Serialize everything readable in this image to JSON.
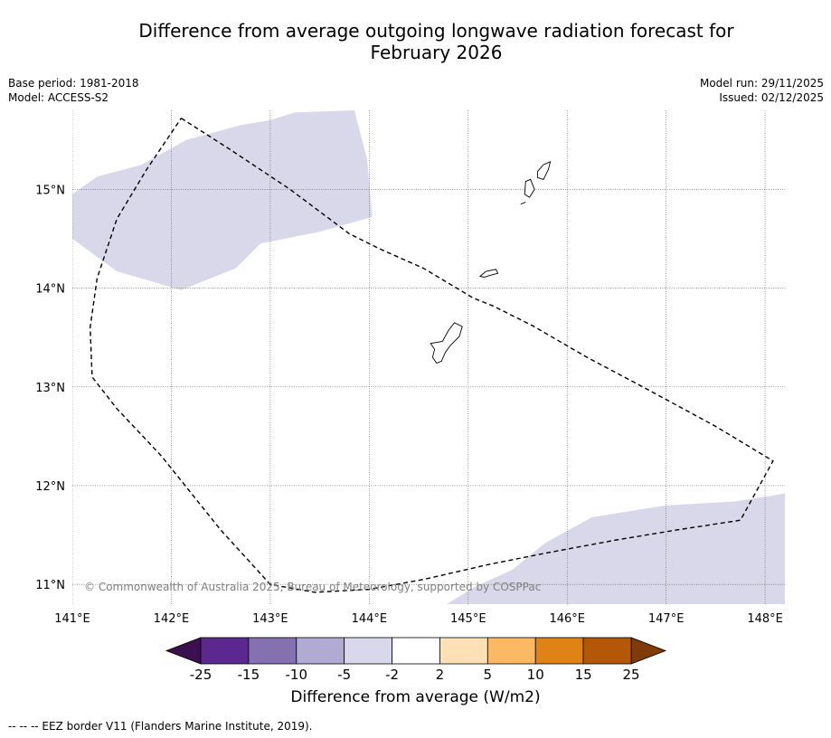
{
  "title_line1": "Difference from average outgoing longwave radiation forecast for",
  "title_line2": "February 2026",
  "meta": {
    "base_period": "Base period: 1981-2018",
    "model": "Model: ACCESS-S2",
    "model_run": "Model run: 29/11/2025",
    "issued": "Issued: 02/12/2025"
  },
  "map": {
    "lon_range": [
      141.0,
      148.2
    ],
    "lat_range": [
      10.8,
      15.8
    ],
    "lon_ticks": [
      141,
      142,
      143,
      144,
      145,
      146,
      147,
      148
    ],
    "lon_tick_labels": [
      "141°E",
      "142°E",
      "143°E",
      "144°E",
      "145°E",
      "146°E",
      "147°E",
      "148°E"
    ],
    "lat_ticks": [
      11,
      12,
      13,
      14,
      15
    ],
    "lat_tick_labels": [
      "11°N",
      "12°N",
      "13°N",
      "14°N",
      "15°N"
    ],
    "anomaly_region_color": "#d9d8ea",
    "anomaly_regions": [
      {
        "name": "northwest-anomaly",
        "category": "-5 to -2",
        "coords": [
          [
            141.0,
            14.95
          ],
          [
            141.25,
            15.13
          ],
          [
            141.7,
            15.25
          ],
          [
            142.15,
            15.5
          ],
          [
            142.7,
            15.65
          ],
          [
            143.0,
            15.7
          ],
          [
            143.25,
            15.78
          ],
          [
            143.85,
            15.8
          ],
          [
            143.98,
            15.3
          ],
          [
            144.03,
            14.72
          ],
          [
            143.5,
            14.57
          ],
          [
            142.9,
            14.45
          ],
          [
            142.65,
            14.2
          ],
          [
            142.1,
            13.98
          ],
          [
            141.45,
            14.17
          ],
          [
            141.0,
            14.5
          ]
        ]
      },
      {
        "name": "southeast-anomaly",
        "category": "-5 to -2",
        "coords": [
          [
            144.78,
            10.8
          ],
          [
            145.08,
            10.98
          ],
          [
            145.45,
            11.15
          ],
          [
            145.78,
            11.42
          ],
          [
            146.25,
            11.68
          ],
          [
            147.0,
            11.8
          ],
          [
            147.7,
            11.84
          ],
          [
            148.2,
            11.92
          ],
          [
            148.2,
            10.8
          ]
        ]
      }
    ],
    "eez_border": [
      [
        142.1,
        15.72
      ],
      [
        142.6,
        15.4
      ],
      [
        143.2,
        15.0
      ],
      [
        143.8,
        14.55
      ],
      [
        144.1,
        14.4
      ],
      [
        144.55,
        14.2
      ],
      [
        145.05,
        13.9
      ],
      [
        145.25,
        13.82
      ],
      [
        145.65,
        13.62
      ],
      [
        146.2,
        13.3
      ],
      [
        146.8,
        12.98
      ],
      [
        147.5,
        12.6
      ],
      [
        148.08,
        12.25
      ],
      [
        147.75,
        11.65
      ],
      [
        147.1,
        11.55
      ],
      [
        146.5,
        11.45
      ],
      [
        145.8,
        11.32
      ],
      [
        145.2,
        11.2
      ],
      [
        144.55,
        11.05
      ],
      [
        144.0,
        10.95
      ],
      [
        143.45,
        10.92
      ],
      [
        143.0,
        11.0
      ],
      [
        142.5,
        11.55
      ],
      [
        141.9,
        12.3
      ],
      [
        141.45,
        12.78
      ],
      [
        141.2,
        13.1
      ],
      [
        141.18,
        13.6
      ],
      [
        141.25,
        14.1
      ],
      [
        141.45,
        14.7
      ],
      [
        141.75,
        15.2
      ],
      [
        142.1,
        15.72
      ]
    ],
    "islands": [
      {
        "name": "Guam",
        "coords": [
          [
            144.62,
            13.44
          ],
          [
            144.74,
            13.46
          ],
          [
            144.8,
            13.57
          ],
          [
            144.86,
            13.65
          ],
          [
            144.94,
            13.61
          ],
          [
            144.91,
            13.51
          ],
          [
            144.82,
            13.42
          ],
          [
            144.77,
            13.35
          ],
          [
            144.73,
            13.26
          ],
          [
            144.68,
            13.24
          ],
          [
            144.64,
            13.3
          ],
          [
            144.66,
            13.38
          ],
          [
            144.62,
            13.44
          ]
        ]
      },
      {
        "name": "Rota",
        "coords": [
          [
            145.12,
            14.12
          ],
          [
            145.18,
            14.17
          ],
          [
            145.28,
            14.19
          ],
          [
            145.3,
            14.15
          ],
          [
            145.22,
            14.13
          ],
          [
            145.16,
            14.11
          ],
          [
            145.12,
            14.12
          ]
        ]
      },
      {
        "name": "Tinian",
        "coords": [
          [
            145.58,
            15.08
          ],
          [
            145.63,
            15.1
          ],
          [
            145.67,
            15.0
          ],
          [
            145.62,
            14.92
          ],
          [
            145.57,
            14.95
          ],
          [
            145.58,
            15.08
          ]
        ]
      },
      {
        "name": "Saipan",
        "coords": [
          [
            145.7,
            15.18
          ],
          [
            145.76,
            15.25
          ],
          [
            145.83,
            15.28
          ],
          [
            145.81,
            15.2
          ],
          [
            145.76,
            15.1
          ],
          [
            145.7,
            15.12
          ],
          [
            145.7,
            15.18
          ]
        ]
      },
      {
        "name": "Aguijan",
        "coords": [
          [
            145.53,
            14.85
          ],
          [
            145.58,
            14.87
          ]
        ]
      }
    ]
  },
  "copyright": "© Commonwealth of Australia 2025, Bureau of Meteorology, supported by COSPPac",
  "colorbar": {
    "title": "Difference from average (W/m2)",
    "low_extension_color": "#3b0f50",
    "high_extension_color": "#7f3b08",
    "bins": [
      {
        "range": "-25 to -15",
        "color": "#5b288f"
      },
      {
        "range": "-15 to -10",
        "color": "#8472b0"
      },
      {
        "range": "-10 to -5",
        "color": "#b1aad3"
      },
      {
        "range": "-5 to -2",
        "color": "#d9d8ea"
      },
      {
        "range": "-2 to 2",
        "color": "#ffffff"
      },
      {
        "range": "2 to 5",
        "color": "#fee0b6"
      },
      {
        "range": "5 to 10",
        "color": "#fdb863"
      },
      {
        "range": "10 to 15",
        "color": "#e08214"
      },
      {
        "range": "15 to 25",
        "color": "#b35806"
      }
    ],
    "tick_labels": [
      "-25",
      "-15",
      "-10",
      "-5",
      "-2",
      "2",
      "5",
      "10",
      "15",
      "25"
    ]
  },
  "footnote": "--  --  -- EEZ border V11 (Flanders Marine Institute, 2019)."
}
